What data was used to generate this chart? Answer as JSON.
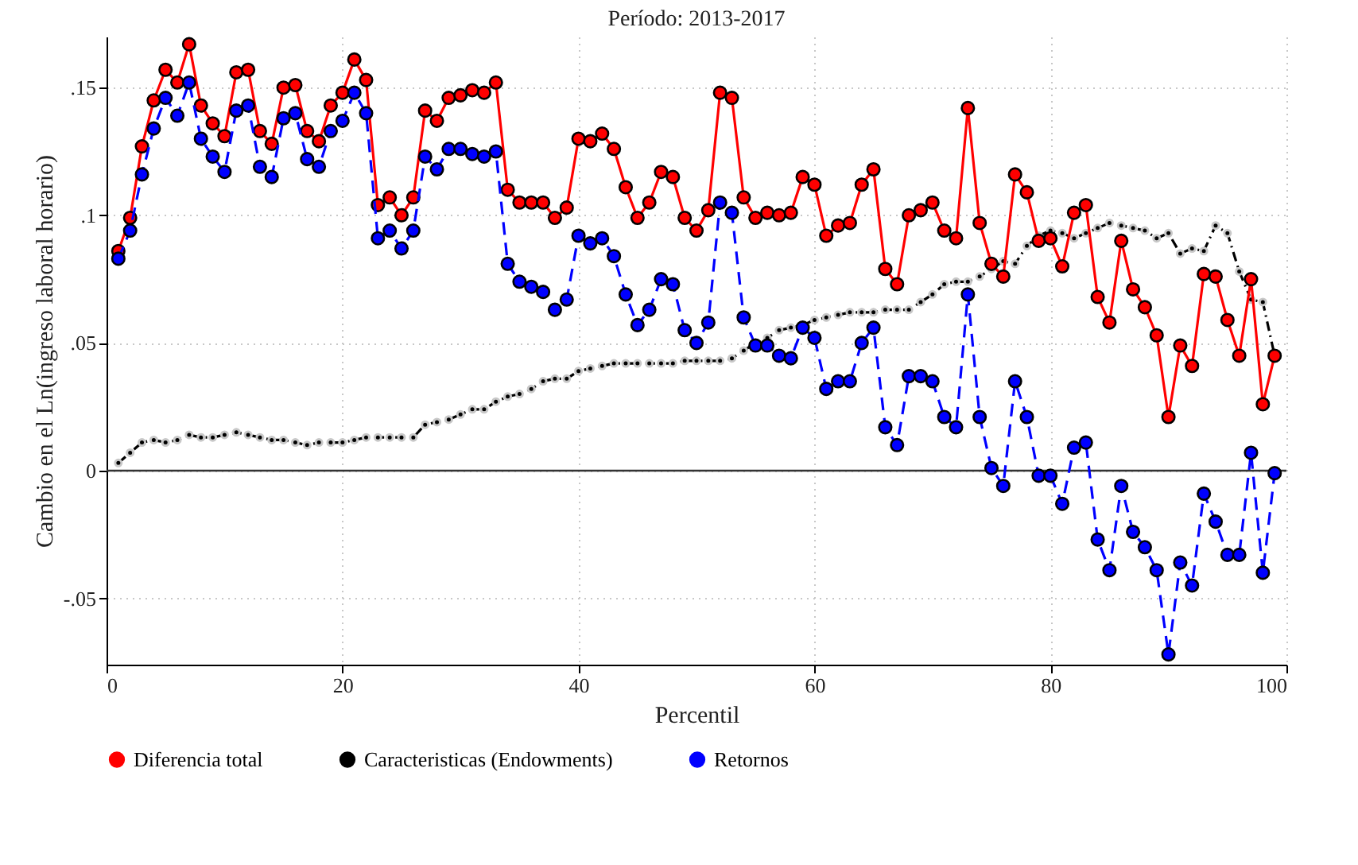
{
  "chart_data": {
    "type": "line",
    "title": "Período: 2013-2017",
    "xlabel": "Percentil",
    "ylabel": "Cambio en el Ln(ingreso laboral horario)",
    "x": [
      1,
      2,
      3,
      4,
      5,
      6,
      7,
      8,
      9,
      10,
      11,
      12,
      13,
      14,
      15,
      16,
      17,
      18,
      19,
      20,
      21,
      22,
      23,
      24,
      25,
      26,
      27,
      28,
      29,
      30,
      31,
      32,
      33,
      34,
      35,
      36,
      37,
      38,
      39,
      40,
      41,
      42,
      43,
      44,
      45,
      46,
      47,
      48,
      49,
      50,
      51,
      52,
      53,
      54,
      55,
      56,
      57,
      58,
      59,
      60,
      61,
      62,
      63,
      64,
      65,
      66,
      67,
      68,
      69,
      70,
      71,
      72,
      73,
      74,
      75,
      76,
      77,
      78,
      79,
      80,
      81,
      82,
      83,
      84,
      85,
      86,
      87,
      88,
      89,
      90,
      91,
      92,
      93,
      94,
      95,
      96,
      97,
      98,
      99
    ],
    "series": [
      {
        "name": "Diferencia total",
        "color": "#ff0000",
        "line_style": "solid",
        "values": [
          0.086,
          0.099,
          0.127,
          0.145,
          0.157,
          0.152,
          0.167,
          0.143,
          0.136,
          0.131,
          0.156,
          0.157,
          0.133,
          0.128,
          0.15,
          0.151,
          0.133,
          0.129,
          0.143,
          0.148,
          0.161,
          0.153,
          0.104,
          0.107,
          0.1,
          0.107,
          0.141,
          0.137,
          0.146,
          0.147,
          0.149,
          0.148,
          0.152,
          0.11,
          0.105,
          0.105,
          0.105,
          0.099,
          0.103,
          0.13,
          0.129,
          0.132,
          0.126,
          0.111,
          0.099,
          0.105,
          0.117,
          0.115,
          0.099,
          0.094,
          0.102,
          0.148,
          0.146,
          0.107,
          0.099,
          0.101,
          0.1,
          0.101,
          0.115,
          0.112,
          0.092,
          0.096,
          0.097,
          0.112,
          0.118,
          0.079,
          0.073,
          0.1,
          0.102,
          0.105,
          0.094,
          0.091,
          0.142,
          0.097,
          0.081,
          0.076,
          0.116,
          0.109,
          0.09,
          0.091,
          0.08,
          0.101,
          0.104,
          0.068,
          0.058,
          0.09,
          0.071,
          0.064,
          0.053,
          0.021,
          0.049,
          0.041,
          0.077,
          0.076,
          0.059,
          0.045,
          0.075,
          0.026,
          0.045
        ]
      },
      {
        "name": "Caracteristicas (Endowments)",
        "color": "#000000",
        "line_style": "dotted",
        "values": [
          0.003,
          0.007,
          0.011,
          0.012,
          0.011,
          0.012,
          0.014,
          0.013,
          0.013,
          0.014,
          0.015,
          0.014,
          0.013,
          0.012,
          0.012,
          0.011,
          0.01,
          0.011,
          0.011,
          0.011,
          0.012,
          0.013,
          0.013,
          0.013,
          0.013,
          0.013,
          0.018,
          0.019,
          0.02,
          0.022,
          0.024,
          0.024,
          0.027,
          0.029,
          0.03,
          0.032,
          0.035,
          0.036,
          0.036,
          0.039,
          0.04,
          0.041,
          0.042,
          0.042,
          0.042,
          0.042,
          0.042,
          0.042,
          0.043,
          0.043,
          0.043,
          0.043,
          0.044,
          0.047,
          0.05,
          0.052,
          0.055,
          0.056,
          0.057,
          0.059,
          0.06,
          0.061,
          0.062,
          0.062,
          0.062,
          0.063,
          0.063,
          0.063,
          0.066,
          0.069,
          0.073,
          0.074,
          0.074,
          0.076,
          0.079,
          0.082,
          0.081,
          0.088,
          0.092,
          0.094,
          0.093,
          0.091,
          0.093,
          0.095,
          0.097,
          0.096,
          0.095,
          0.094,
          0.091,
          0.093,
          0.085,
          0.087,
          0.086,
          0.096,
          0.093,
          0.078,
          0.067,
          0.066,
          0.045
        ]
      },
      {
        "name": "Retornos",
        "color": "#0000ff",
        "line_style": "dashed",
        "values": [
          0.083,
          0.094,
          0.116,
          0.134,
          0.146,
          0.139,
          0.152,
          0.13,
          0.123,
          0.117,
          0.141,
          0.143,
          0.119,
          0.115,
          0.138,
          0.14,
          0.122,
          0.119,
          0.133,
          0.137,
          0.148,
          0.14,
          0.091,
          0.094,
          0.087,
          0.094,
          0.123,
          0.118,
          0.126,
          0.126,
          0.124,
          0.123,
          0.125,
          0.081,
          0.074,
          0.072,
          0.07,
          0.063,
          0.067,
          0.092,
          0.089,
          0.091,
          0.084,
          0.069,
          0.057,
          0.063,
          0.075,
          0.073,
          0.055,
          0.05,
          0.058,
          0.105,
          0.101,
          0.06,
          0.049,
          0.049,
          0.045,
          0.044,
          0.056,
          0.052,
          0.032,
          0.035,
          0.035,
          0.05,
          0.056,
          0.017,
          0.01,
          0.037,
          0.037,
          0.035,
          0.021,
          0.017,
          0.069,
          0.021,
          0.001,
          -0.006,
          0.035,
          0.021,
          -0.002,
          -0.002,
          -0.013,
          0.009,
          0.011,
          -0.027,
          -0.039,
          -0.006,
          -0.024,
          -0.03,
          -0.039,
          -0.072,
          -0.036,
          -0.045,
          -0.009,
          -0.02,
          -0.033,
          -0.033,
          0.007,
          -0.04,
          -0.001
        ]
      }
    ],
    "xlim": [
      0,
      100
    ],
    "xticks": [
      0,
      20,
      40,
      60,
      80,
      100
    ],
    "ylim": [
      -0.076,
      0.17
    ],
    "yticks": [
      {
        "value": -0.05,
        "label": "-.05"
      },
      {
        "value": 0,
        "label": "0"
      },
      {
        "value": 0.05,
        "label": ".05"
      },
      {
        "value": 0.1,
        "label": ".1"
      },
      {
        "value": 0.15,
        "label": ".15"
      }
    ],
    "ref_lines": [
      {
        "axis": "y",
        "value": 0,
        "color": "#333333"
      }
    ],
    "grid": true,
    "legend": "bottom",
    "marker": "circle"
  }
}
